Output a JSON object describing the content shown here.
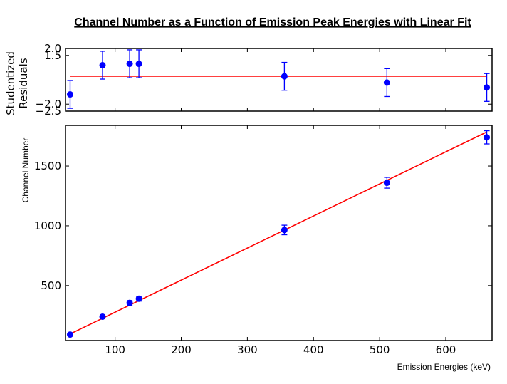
{
  "chart_data": [
    {
      "type": "scatter",
      "panel": "residuals",
      "title": "Channel Number as a Function of Emission Peak Energies with Linear Fit",
      "ylabel_line1": "Studentized",
      "ylabel_line2": "Residuals",
      "xlim": [
        25,
        670
      ],
      "ylim": [
        -2.5,
        2.0
      ],
      "yticks": [
        -2.5,
        -2.0,
        1.5,
        2.0
      ],
      "ytick_labels": [
        "−2.5",
        "−2.0",
        "1.5",
        "2.0"
      ],
      "grid": false,
      "series": [
        {
          "x": [
            32,
            81,
            122,
            136,
            356,
            511,
            662
          ],
          "y": [
            -1.3,
            0.8,
            0.9,
            0.9,
            0.0,
            -0.45,
            -0.8
          ],
          "yerr": [
            1.0,
            1.0,
            1.0,
            1.0,
            1.0,
            1.0,
            1.0
          ],
          "color": "#0000ff"
        }
      ],
      "reference_line": {
        "y": 0,
        "color": "#ff0000"
      }
    },
    {
      "type": "scatter",
      "panel": "main",
      "xlabel": "Emission Energies (keV)",
      "ylabel": "Channel Number",
      "xlim": [
        25,
        670
      ],
      "ylim": [
        40,
        1840
      ],
      "xticks": [
        100,
        200,
        300,
        400,
        500,
        600
      ],
      "yticks": [
        500,
        1000,
        1500
      ],
      "grid": false,
      "series": [
        {
          "x": [
            32,
            81,
            122,
            136,
            356,
            511,
            662
          ],
          "y": [
            90,
            240,
            355,
            390,
            965,
            1360,
            1740
          ],
          "yerr": [
            10,
            15,
            20,
            20,
            40,
            45,
            55
          ],
          "color": "#0000ff"
        }
      ],
      "fit_line": {
        "x": [
          32,
          662
        ],
        "y": [
          95,
          1785
        ],
        "color": "#ff0000"
      }
    }
  ]
}
